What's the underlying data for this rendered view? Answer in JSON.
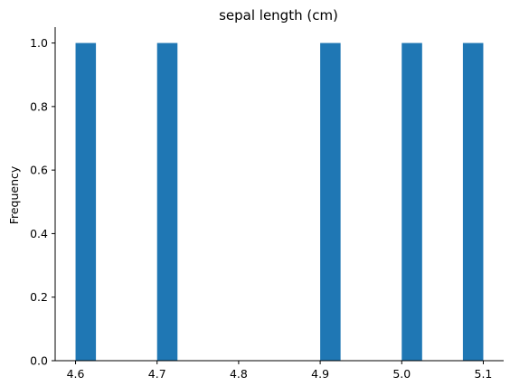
{
  "chart_data": {
    "type": "bar",
    "title": "sepal length (cm)",
    "xlabel": "",
    "ylabel": "Frequency",
    "bins": [
      {
        "x0": 4.6,
        "x1": 4.625,
        "count": 1.0
      },
      {
        "x0": 4.7,
        "x1": 4.725,
        "count": 1.0
      },
      {
        "x0": 4.9,
        "x1": 4.925,
        "count": 1.0
      },
      {
        "x0": 5.0,
        "x1": 5.025,
        "count": 1.0
      },
      {
        "x0": 5.075,
        "x1": 5.1,
        "count": 1.0
      }
    ],
    "xlim": [
      4.575,
      5.125
    ],
    "ylim": [
      0,
      1.05
    ],
    "xticks": [
      4.6,
      4.7,
      4.8,
      4.9,
      5.0,
      5.1
    ],
    "xtick_labels": [
      "4.6",
      "4.7",
      "4.8",
      "4.9",
      "5.0",
      "5.1"
    ],
    "yticks": [
      0.0,
      0.2,
      0.4,
      0.6,
      0.8,
      1.0
    ],
    "ytick_labels": [
      "0.0",
      "0.2",
      "0.4",
      "0.6",
      "0.8",
      "1.0"
    ],
    "grid": false,
    "spines": "left-bottom",
    "colors": {
      "bar": "#1f77b4",
      "axis": "#000000"
    }
  }
}
